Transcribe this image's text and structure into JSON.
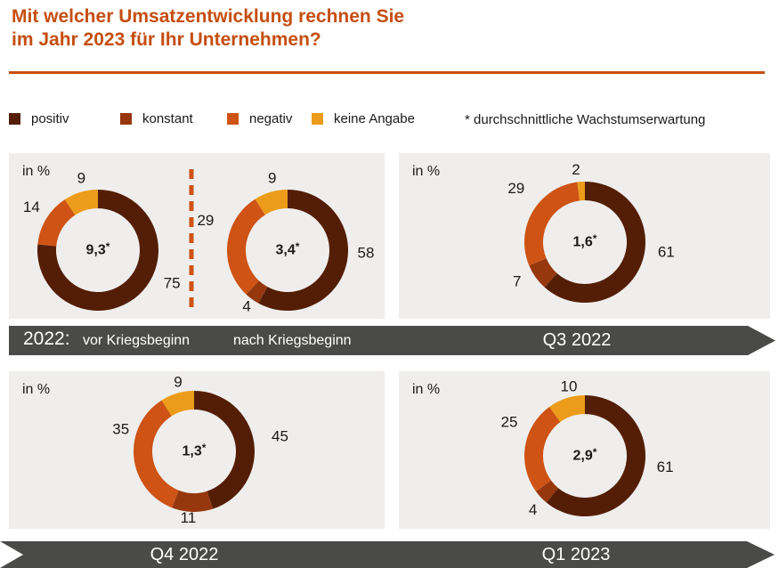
{
  "title": {
    "line1": "Mit welcher Umsatzentwicklung rechnen Sie",
    "line2": "im Jahr 2023 für Ihr Unternehmen?"
  },
  "unit_label": "in %",
  "footnote": "* durchschnittliche Wachstumserwartung",
  "colors": {
    "accent": "#C54E10",
    "positiv": "#541E06",
    "konstant": "#96370E",
    "negativ": "#CE5315",
    "keine_angabe": "#EC9C1A",
    "band": "#4A4A48",
    "band_text": "#FFFFFF",
    "panel_bg": "#EFEEEC",
    "text": "#1A1A1A"
  },
  "legend": {
    "items": [
      {
        "key": "positiv",
        "label": "positiv"
      },
      {
        "key": "konstant",
        "label": "konstant"
      },
      {
        "key": "negativ",
        "label": "negativ"
      },
      {
        "key": "keine_angabe",
        "label": "keine Angabe"
      }
    ]
  },
  "bands": {
    "top": {
      "prefix": "2022:",
      "label_left": "vor Kriegsbeginn",
      "label_middle": "nach Kriegsbeginn",
      "label_right": "Q3 2022"
    },
    "bottom": {
      "label_left": "Q4 2022",
      "label_right": "Q1 2023"
    }
  },
  "chart_data": {
    "type": "donut",
    "title": "Mit welcher Umsatzentwicklung rechnen Sie im Jahr 2023 für Ihr Unternehmen?",
    "unit": "percent",
    "categories": [
      "positiv",
      "konstant",
      "negativ",
      "keine Angabe"
    ],
    "footnote": "* durchschnittliche Wachstumserwartung",
    "legend_position": "top",
    "charts": [
      {
        "period": "2022 vor Kriegsbeginn",
        "average": "9,3*",
        "segments": [
          {
            "category": "positiv",
            "value": 75,
            "label_angle": 114,
            "label_r": 91
          },
          {
            "category": "negativ",
            "value": 14,
            "label_angle": 303,
            "label_r": 89
          },
          {
            "category": "keine_angabe",
            "value": 9,
            "label_angle": 347,
            "label_r": 83
          }
        ]
      },
      {
        "period": "2022 nach Kriegsbeginn",
        "average": "3,4*",
        "segments": [
          {
            "category": "positiv",
            "value": 58,
            "label_angle": 92,
            "label_r": 88
          },
          {
            "category": "konstant",
            "value": 4,
            "label_angle": 216,
            "label_r": 78
          },
          {
            "category": "negativ",
            "value": 29,
            "label_angle": 290,
            "label_r": 98
          },
          {
            "category": "keine_angabe",
            "value": 9,
            "label_angle": 348,
            "label_r": 83
          }
        ]
      },
      {
        "period": "Q3 2022",
        "average": "1,6*",
        "segments": [
          {
            "category": "positiv",
            "value": 61,
            "label_angle": 97,
            "label_r": 92
          },
          {
            "category": "konstant",
            "value": 7,
            "label_angle": 240,
            "label_r": 88
          },
          {
            "category": "negativ",
            "value": 29,
            "label_angle": 308,
            "label_r": 98
          },
          {
            "category": "keine_angabe",
            "value": 2,
            "label_angle": 353,
            "label_r": 82
          }
        ]
      },
      {
        "period": "Q4 2022",
        "average": "1,3*",
        "segments": [
          {
            "category": "positiv",
            "value": 45,
            "label_angle": 80,
            "label_r": 98
          },
          {
            "category": "konstant",
            "value": 11,
            "label_angle": 185,
            "label_r": 75
          },
          {
            "category": "negativ",
            "value": 35,
            "label_angle": 287,
            "label_r": 86
          },
          {
            "category": "keine_angabe",
            "value": 9,
            "label_angle": 347,
            "label_r": 80
          }
        ]
      },
      {
        "period": "Q1 2023",
        "average": "2,9*",
        "segments": [
          {
            "category": "positiv",
            "value": 61,
            "label_angle": 98,
            "label_r": 91
          },
          {
            "category": "konstant",
            "value": 4,
            "label_angle": 224,
            "label_r": 84
          },
          {
            "category": "negativ",
            "value": 25,
            "label_angle": 294,
            "label_r": 93
          },
          {
            "category": "keine_angabe",
            "value": 10,
            "label_angle": 347,
            "label_r": 80
          }
        ]
      }
    ]
  }
}
